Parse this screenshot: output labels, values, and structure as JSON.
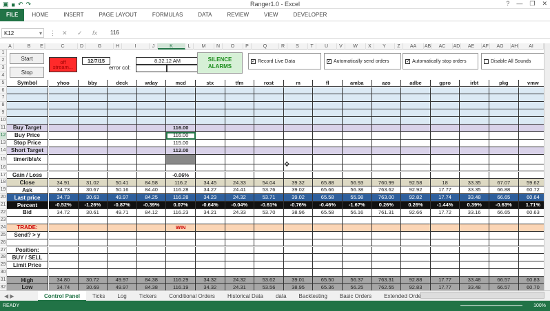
{
  "window": {
    "title": "Ranger1.0 - Excel",
    "help": "?",
    "minimize": "—",
    "restore": "❐",
    "close": "✕"
  },
  "ribbon_tabs": [
    "FILE",
    "HOME",
    "INSERT",
    "PAGE LAYOUT",
    "FORMULAS",
    "DATA",
    "REVIEW",
    "VIEW",
    "DEVELOPER"
  ],
  "formula_bar": {
    "name_box": "K12",
    "fx": "fx",
    "formula": "116"
  },
  "columns": [
    "A",
    "B",
    "C",
    "D",
    "E",
    "F",
    "G",
    "H",
    "I",
    "J",
    "K",
    "L",
    "M",
    "N",
    "O",
    "P",
    "Q",
    "R",
    "S",
    "T",
    "U",
    "V",
    "W",
    "X",
    "Y",
    "Z",
    "AA",
    "AB",
    "AC",
    "AD",
    "AE",
    "AF",
    "AG",
    "AH",
    "AI"
  ],
  "rows": [
    "1",
    "2",
    "3",
    "4",
    "5",
    "6",
    "7",
    "8",
    "9",
    "10",
    "11",
    "12",
    "13",
    "14",
    "15",
    "16",
    "17",
    "18",
    "19",
    "20",
    "21",
    "22",
    "23",
    "24",
    "25",
    "26",
    "27",
    "28",
    "29",
    "30",
    "31",
    "32"
  ],
  "controls": {
    "start": "Start",
    "stop": "Stop",
    "status_cell": "off\nstream...",
    "date": "12/7/15",
    "time": "8.32.12 AM",
    "error_label": "error col:",
    "silence": "SILENCE\nALARMS",
    "chk_record": "Record Live Data",
    "chk_send": "Automatically send orders",
    "chk_stop": "Automatically stop orders",
    "chk_disable": "Disable All Sounds"
  },
  "symbol_label": "Symbol",
  "symbols": [
    "yhoo",
    "bby",
    "deck",
    "wday",
    "mcd",
    "stx",
    "tfm",
    "rost",
    "m",
    "fl",
    "amba",
    "azo",
    "adbe",
    "gpro",
    "irbt",
    "pkg",
    "vmw"
  ],
  "labels": {
    "buy_target": "Buy Target",
    "buy_price": "Buy Price",
    "stop_price": "Stop Price",
    "short_target": "Short Target",
    "timer": "timer/b/s/x",
    "gain": "Gain / Loss",
    "close": "Close",
    "ask": "Ask",
    "last": "Last price",
    "percent": "Percent",
    "bid": "Bid",
    "trade": "TRADE:",
    "send": "Send? > y",
    "position": "Position:",
    "buysell": "BUY / SELL",
    "limit": "Limit Price",
    "high": "High",
    "low": "Low"
  },
  "mcd_values": {
    "buy_target": "116.00",
    "buy_price": "116.00",
    "stop_price": "115.00",
    "short_target": "112.00",
    "gain": "-0.06%",
    "trade": "WIN"
  },
  "close": [
    "34.91",
    "31.02",
    "50.41",
    "84.58",
    "116.2",
    "34.45",
    "24.33",
    "54.04",
    "39.32",
    "65.88",
    "56.93",
    "760.99",
    "92.58",
    "18",
    "33.35",
    "67.07",
    "59.62"
  ],
  "ask": [
    "34.73",
    "30.67",
    "50.16",
    "84.40",
    "116.28",
    "34.27",
    "24.41",
    "53.76",
    "39.02",
    "65.66",
    "56.38",
    "763.62",
    "92.92",
    "17.77",
    "33.35",
    "66.88",
    "60.72"
  ],
  "last": [
    "34.73",
    "30.63",
    "49.97",
    "84.25",
    "116.28",
    "34.23",
    "24.32",
    "53.71",
    "39.02",
    "65.58",
    "55.98",
    "763.00",
    "92.82",
    "17.74",
    "33.48",
    "66.65",
    "60.64"
  ],
  "percent": [
    "-0.52%",
    "-1.26%",
    "-0.87%",
    "-0.39%",
    "0.07%",
    "-0.64%",
    "-0.04%",
    "-0.61%",
    "-0.76%",
    "-0.46%",
    "-1.67%",
    "0.26%",
    "0.26%",
    "-1.44%",
    "0.39%",
    "-0.63%",
    "1.71%"
  ],
  "bid": [
    "34.72",
    "30.61",
    "49.71",
    "84.12",
    "116.23",
    "34.21",
    "24.33",
    "53.70",
    "38.96",
    "65.58",
    "56.16",
    "761.31",
    "92.66",
    "17.72",
    "33.16",
    "66.65",
    "60.63"
  ],
  "high": [
    "34.80",
    "30.72",
    "49.97",
    "84.38",
    "116.29",
    "34.32",
    "24.32",
    "53.62",
    "39.01",
    "65.50",
    "56.37",
    "763.31",
    "92.88",
    "17.77",
    "33.48",
    "66.57",
    "60.83"
  ],
  "low": [
    "34.74",
    "30.69",
    "49.97",
    "84.38",
    "116.19",
    "34.32",
    "24.31",
    "53.56",
    "38.95",
    "65.36",
    "56.25",
    "762.55",
    "92.83",
    "17.77",
    "33.48",
    "66.57",
    "60.70"
  ],
  "sheet_tabs": [
    "Control Panel",
    "Ticks",
    "Log",
    "Tickers",
    "Conditional Orders",
    "Historical Data",
    "data",
    "Backtesting",
    "Basic Orders",
    "Extended Order Attribu..."
  ],
  "status": {
    "ready": "READY",
    "zoom": "100%"
  },
  "colors": {
    "excel_green": "#217346",
    "blue_rows": "#dbe9f4",
    "purple_rows": "#d9d2e9",
    "tan_rows": "#ddd9c3",
    "dark_blue": "#2e5f9c",
    "black_row": "#111",
    "orange_row": "#fbd5b5",
    "gray_row": "#a6a6a6",
    "red_cell": "#ff2a2a"
  }
}
